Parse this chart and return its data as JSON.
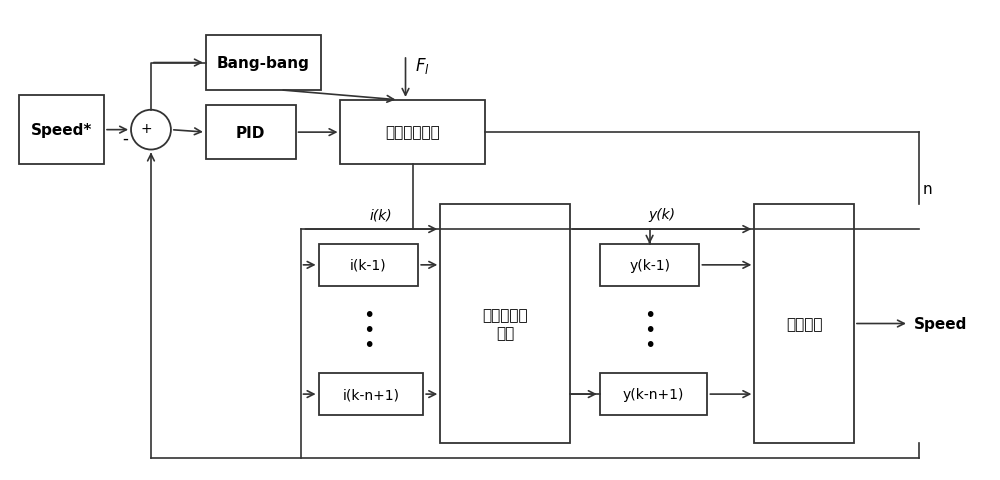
{
  "bg_color": "#ffffff",
  "box_edge": "#333333",
  "box_face": "#ffffff",
  "text_color": "#000000",
  "line_color": "#333333",
  "figsize": [
    10.0,
    4.81
  ],
  "dpi": 100,
  "font_cn": "SimSun",
  "labels": {
    "speed_star": "Speed*",
    "bang_bang": "Bang-bang",
    "pid": "PID",
    "motor": "有刺直流电机",
    "lsq": "最小二乘分\n类器",
    "velocity": "测速算法",
    "ik1": "i(k-1)",
    "iknp1": "i(k-n+1)",
    "yk1": "y(k-1)",
    "yknp1": "y(k-n+1)",
    "ik": "i(k)",
    "yk": "y(k)",
    "fl": "$F_l$",
    "n": "n",
    "speed_out": "Speed",
    "minus": "-"
  }
}
